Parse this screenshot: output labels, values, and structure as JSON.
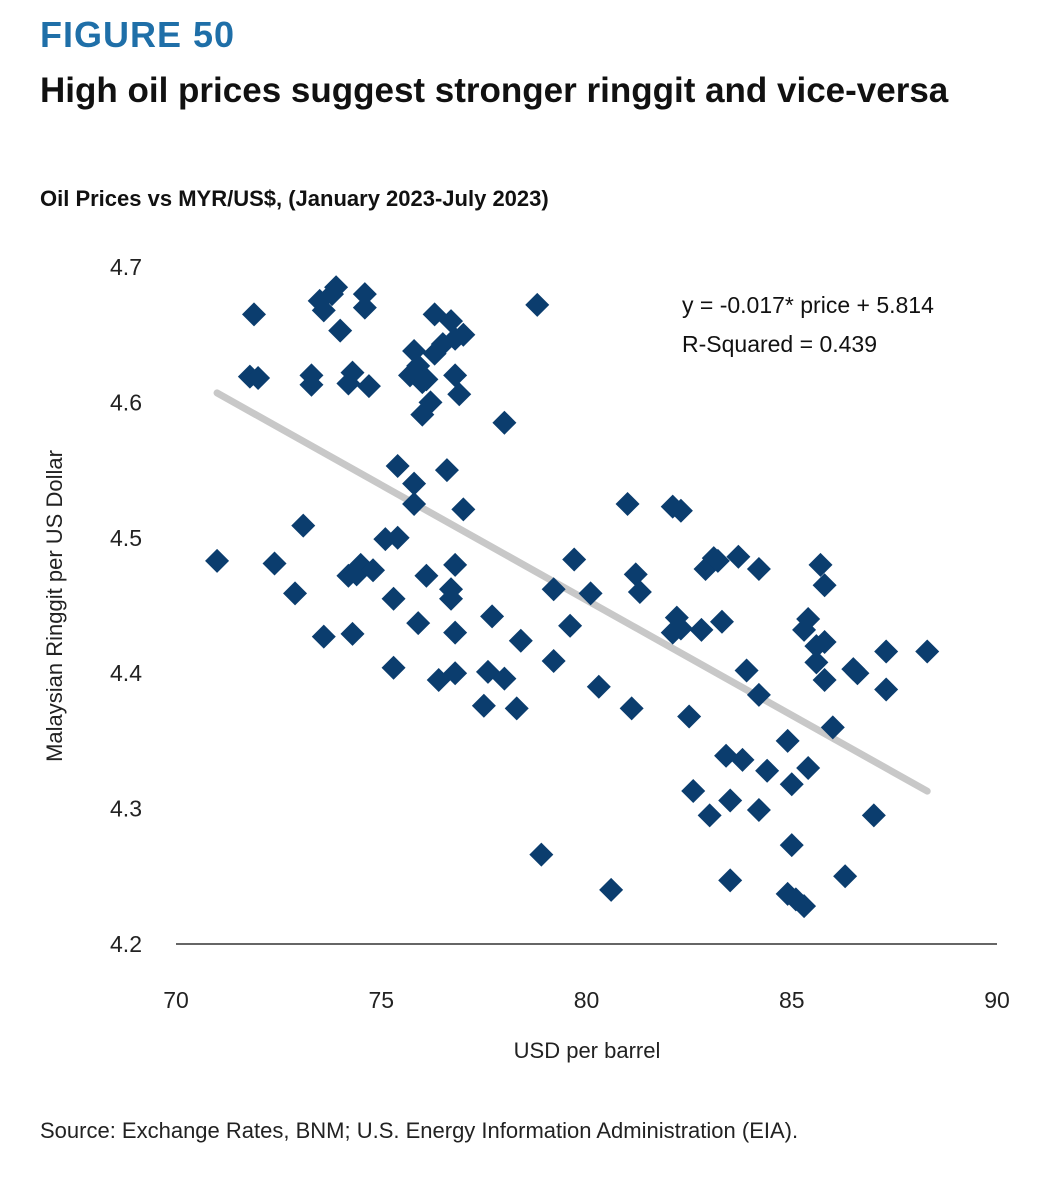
{
  "figure": {
    "label": "FIGURE 50",
    "title": "High oil prices suggest stronger ringgit and vice-versa",
    "subtitle": "Oil Prices vs MYR/US$, (January 2023-July 2023)",
    "source": "Source: Exchange Rates, BNM; U.S. Energy Information Administration (EIA)."
  },
  "colors": {
    "label": "#1f6fa8",
    "points": "#0b3d6e",
    "trendline": "#c8c8c8",
    "axis": "#333333"
  },
  "chart_data": {
    "type": "scatter",
    "xlabel": "USD per barrel",
    "ylabel": "Malaysian Ringgit per US Dollar",
    "xlim": [
      70,
      90
    ],
    "ylim": [
      4.2,
      4.7
    ],
    "xticks": [
      70,
      75,
      80,
      85,
      90
    ],
    "yticks": [
      4.2,
      4.3,
      4.4,
      4.5,
      4.6,
      4.7
    ],
    "grid": false,
    "marker": "diamond",
    "annotation": {
      "equation": "y = -0.017* price + 5.814",
      "r_squared": "R-Squared = 0.439"
    },
    "trendline": {
      "slope": -0.017,
      "intercept": 5.814,
      "x_range": [
        71.0,
        88.3
      ]
    },
    "points": [
      [
        71.0,
        4.483
      ],
      [
        71.9,
        4.665
      ],
      [
        71.8,
        4.619
      ],
      [
        72.0,
        4.618
      ],
      [
        72.4,
        4.481
      ],
      [
        72.9,
        4.459
      ],
      [
        73.1,
        4.509
      ],
      [
        73.3,
        4.613
      ],
      [
        73.3,
        4.62
      ],
      [
        73.5,
        4.675
      ],
      [
        73.6,
        4.668
      ],
      [
        73.6,
        4.427
      ],
      [
        73.8,
        4.68
      ],
      [
        73.9,
        4.685
      ],
      [
        74.0,
        4.653
      ],
      [
        74.2,
        4.614
      ],
      [
        74.2,
        4.472
      ],
      [
        74.3,
        4.622
      ],
      [
        74.3,
        4.429
      ],
      [
        74.4,
        4.473
      ],
      [
        74.5,
        4.48
      ],
      [
        74.6,
        4.68
      ],
      [
        74.6,
        4.67
      ],
      [
        74.7,
        4.612
      ],
      [
        74.8,
        4.476
      ],
      [
        75.1,
        4.499
      ],
      [
        75.3,
        4.455
      ],
      [
        75.3,
        4.404
      ],
      [
        75.4,
        4.5
      ],
      [
        75.4,
        4.553
      ],
      [
        75.7,
        4.62
      ],
      [
        75.8,
        4.525
      ],
      [
        75.8,
        4.54
      ],
      [
        75.8,
        4.638
      ],
      [
        75.9,
        4.627
      ],
      [
        75.9,
        4.437
      ],
      [
        76.0,
        4.591
      ],
      [
        76.0,
        4.615
      ],
      [
        76.1,
        4.617
      ],
      [
        76.1,
        4.472
      ],
      [
        76.2,
        4.6
      ],
      [
        76.3,
        4.665
      ],
      [
        76.3,
        4.636
      ],
      [
        76.4,
        4.395
      ],
      [
        76.5,
        4.643
      ],
      [
        76.6,
        4.55
      ],
      [
        76.7,
        4.462
      ],
      [
        76.7,
        4.455
      ],
      [
        76.7,
        4.66
      ],
      [
        76.8,
        4.647
      ],
      [
        76.8,
        4.48
      ],
      [
        76.8,
        4.4
      ],
      [
        76.8,
        4.43
      ],
      [
        76.8,
        4.62
      ],
      [
        76.9,
        4.606
      ],
      [
        77.0,
        4.65
      ],
      [
        77.0,
        4.521
      ],
      [
        77.5,
        4.376
      ],
      [
        77.6,
        4.401
      ],
      [
        77.7,
        4.442
      ],
      [
        78.0,
        4.585
      ],
      [
        78.0,
        4.396
      ],
      [
        78.3,
        4.374
      ],
      [
        78.4,
        4.424
      ],
      [
        78.8,
        4.672
      ],
      [
        78.9,
        4.266
      ],
      [
        79.2,
        4.409
      ],
      [
        79.2,
        4.462
      ],
      [
        79.6,
        4.435
      ],
      [
        79.7,
        4.484
      ],
      [
        80.1,
        4.459
      ],
      [
        80.3,
        4.39
      ],
      [
        80.6,
        4.24
      ],
      [
        81.0,
        4.525
      ],
      [
        81.1,
        4.374
      ],
      [
        81.2,
        4.473
      ],
      [
        81.3,
        4.46
      ],
      [
        82.1,
        4.523
      ],
      [
        82.1,
        4.43
      ],
      [
        82.2,
        4.441
      ],
      [
        82.3,
        4.52
      ],
      [
        82.3,
        4.433
      ],
      [
        82.5,
        4.368
      ],
      [
        82.6,
        4.313
      ],
      [
        82.8,
        4.432
      ],
      [
        82.9,
        4.477
      ],
      [
        83.0,
        4.295
      ],
      [
        83.1,
        4.485
      ],
      [
        83.2,
        4.483
      ],
      [
        83.3,
        4.438
      ],
      [
        83.4,
        4.339
      ],
      [
        83.5,
        4.247
      ],
      [
        83.5,
        4.306
      ],
      [
        83.7,
        4.486
      ],
      [
        83.8,
        4.336
      ],
      [
        83.9,
        4.402
      ],
      [
        84.2,
        4.384
      ],
      [
        84.2,
        4.299
      ],
      [
        84.2,
        4.477
      ],
      [
        84.4,
        4.328
      ],
      [
        84.9,
        4.35
      ],
      [
        84.9,
        4.237
      ],
      [
        85.0,
        4.318
      ],
      [
        85.0,
        4.273
      ],
      [
        85.1,
        4.233
      ],
      [
        85.3,
        4.228
      ],
      [
        85.3,
        4.432
      ],
      [
        85.4,
        4.44
      ],
      [
        85.4,
        4.33
      ],
      [
        85.6,
        4.42
      ],
      [
        85.6,
        4.408
      ],
      [
        85.7,
        4.48
      ],
      [
        85.8,
        4.465
      ],
      [
        85.8,
        4.423
      ],
      [
        85.8,
        4.395
      ],
      [
        86.0,
        4.36
      ],
      [
        86.3,
        4.25
      ],
      [
        86.5,
        4.403
      ],
      [
        86.6,
        4.4
      ],
      [
        87.0,
        4.295
      ],
      [
        87.3,
        4.416
      ],
      [
        87.3,
        4.388
      ],
      [
        88.3,
        4.416
      ]
    ]
  }
}
